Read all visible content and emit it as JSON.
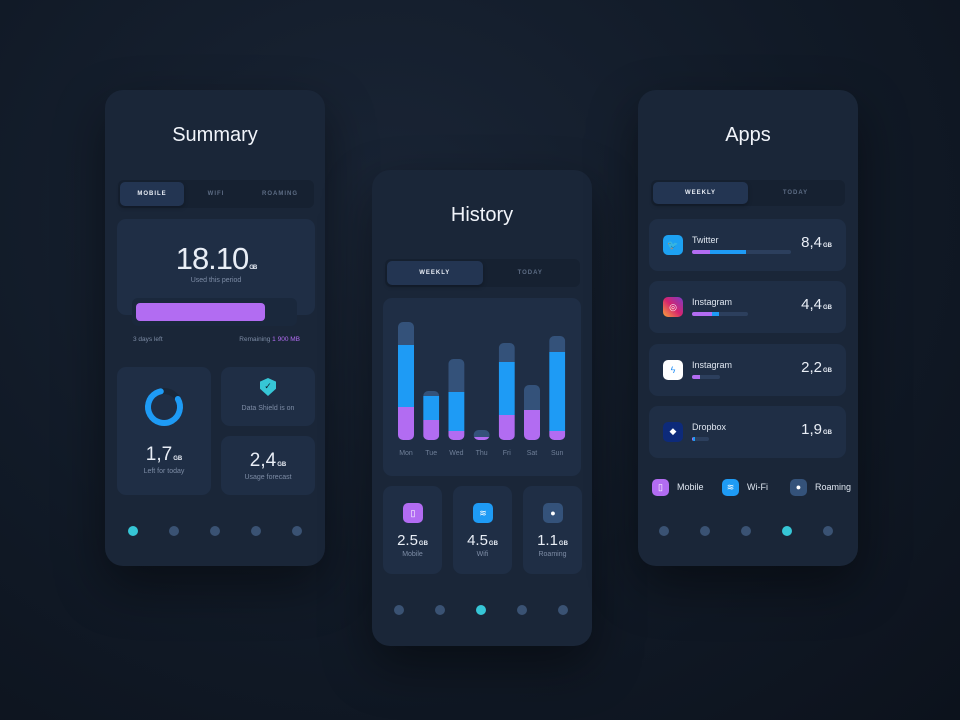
{
  "colors": {
    "mobile": "#b26cf2",
    "wifi": "#1e9bf5",
    "roaming": "#34527a",
    "accent": "#36c6d6"
  },
  "summary": {
    "title": "Summary",
    "tabs": [
      "MOBILE",
      "WIFI",
      "ROAMING"
    ],
    "active_tab": 0,
    "used": "18.10",
    "used_unit": "GB",
    "used_label": "Used this period",
    "progress_percent": 82,
    "days_left": "3 days left",
    "remaining_label": "Remaining",
    "remaining_value": "1 900 MB",
    "today_left": "1,7",
    "today_unit": "GB",
    "today_label": "Left for today",
    "today_ring_percent": 80,
    "shield_label": "Data Shield is on",
    "forecast": "2,4",
    "forecast_unit": "GB",
    "forecast_label": "Usage forecast",
    "nav": [
      "pie-chart-icon",
      "shield-icon",
      "bar-chart-icon",
      "timer-icon",
      "settings-icon"
    ],
    "nav_active": 0
  },
  "history": {
    "title": "History",
    "tabs": [
      "WEEKLY",
      "TODAY"
    ],
    "active_tab": 0,
    "stats": [
      {
        "value": "2.5",
        "unit": "GB",
        "label": "Mobile",
        "icon": "phone-icon"
      },
      {
        "value": "4.5",
        "unit": "GB",
        "label": "Wifi",
        "icon": "wifi-icon"
      },
      {
        "value": "1.1",
        "unit": "GB",
        "label": "Roaming",
        "icon": "globe-icon"
      }
    ],
    "nav_active": 2
  },
  "chart_data": {
    "type": "bar",
    "stacked": true,
    "categories": [
      "Mon",
      "Tue",
      "Wed",
      "Thu",
      "Fri",
      "Sat",
      "Sun"
    ],
    "series": [
      {
        "key": "mobile",
        "values": [
          33,
          20,
          9,
          3,
          25,
          30,
          9
        ]
      },
      {
        "key": "wifi",
        "values": [
          62,
          24,
          39,
          0,
          53,
          0,
          79
        ]
      },
      {
        "key": "roaming",
        "values": [
          23,
          5,
          33,
          7,
          19,
          25,
          16
        ]
      }
    ],
    "grid": false,
    "legend": "none"
  },
  "apps": {
    "title": "Apps",
    "tabs": [
      "WEEKLY",
      "TODAY"
    ],
    "active_tab": 0,
    "items": [
      {
        "name": "Twitter",
        "value": "8,4",
        "unit": "GB",
        "icon": "twitter-icon",
        "bar": [
          {
            "k": "mobile",
            "p": 18
          },
          {
            "k": "wifi",
            "p": 37
          }
        ],
        "track": 100
      },
      {
        "name": "Instagram",
        "value": "4,4",
        "unit": "GB",
        "icon": "instagram-icon",
        "bar": [
          {
            "k": "mobile",
            "p": 36
          },
          {
            "k": "wifi",
            "p": 12
          }
        ],
        "track": 57
      },
      {
        "name": "Instagram",
        "value": "2,2",
        "unit": "GB",
        "icon": "messenger-icon",
        "bar": [
          {
            "k": "mobile",
            "p": 28
          }
        ],
        "track": 28
      },
      {
        "name": "Dropbox",
        "value": "1,9",
        "unit": "GB",
        "icon": "dropbox-icon",
        "bar": [
          {
            "k": "mobile",
            "p": 6
          },
          {
            "k": "wifi",
            "p": 10
          }
        ],
        "track": 17
      }
    ],
    "legend": [
      {
        "label": "Mobile",
        "icon": "phone-icon"
      },
      {
        "label": "Wi-Fi",
        "icon": "wifi-icon"
      },
      {
        "label": "Roaming",
        "icon": "globe-icon"
      }
    ],
    "nav_active": 3
  }
}
